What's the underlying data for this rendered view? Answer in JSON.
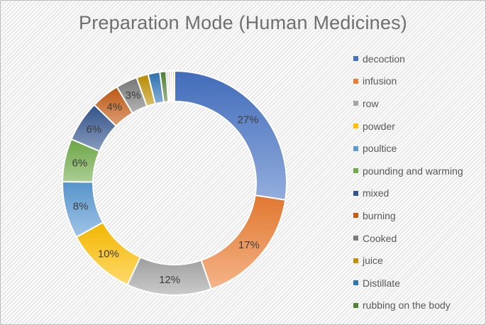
{
  "chart_data": {
    "type": "pie",
    "subtype": "donut",
    "title": "Preparation Mode (Human Medicines)",
    "hole_ratio": 0.73,
    "legend_position": "right",
    "labels_format": "percent",
    "slices": [
      {
        "label": "decoction",
        "value": 27.4,
        "display": "27%",
        "color": "#4472C4",
        "in_legend": true
      },
      {
        "label": "infusion",
        "value": 17.3,
        "display": "17%",
        "color": "#ED7D31",
        "in_legend": true
      },
      {
        "label": "row",
        "value": 12.2,
        "display": "12%",
        "color": "#A5A5A5",
        "in_legend": true
      },
      {
        "label": "powder",
        "value": 10.1,
        "display": "10%",
        "color": "#FFC000",
        "in_legend": true
      },
      {
        "label": "poultice",
        "value": 8.2,
        "display": "8%",
        "color": "#5B9BD5",
        "in_legend": true
      },
      {
        "label": "pounding and warming",
        "value": 6.2,
        "display": "6%",
        "color": "#70AD47",
        "in_legend": true
      },
      {
        "label": "mixed",
        "value": 5.9,
        "display": "6%",
        "color": "#33558F",
        "in_legend": true
      },
      {
        "label": "burning",
        "value": 4.1,
        "display": "4%",
        "color": "#C55A11",
        "in_legend": true
      },
      {
        "label": "Cooked",
        "value": 3.1,
        "display": "3%",
        "color": "#7C7C7C",
        "in_legend": true
      },
      {
        "label": "juice",
        "value": 1.7,
        "display": "",
        "color": "#BF9000",
        "in_legend": true
      },
      {
        "label": "Distillate",
        "value": 1.7,
        "display": "",
        "color": "#2E75B6",
        "in_legend": true
      },
      {
        "label": "rubbing on the body",
        "value": 0.9,
        "display": "",
        "color": "#548235",
        "in_legend": true
      },
      {
        "label": "",
        "value": 0.3,
        "display": "",
        "color": "#9DC3E6",
        "in_legend": false
      },
      {
        "label": "",
        "value": 0.3,
        "display": "",
        "color": "#F4B183",
        "in_legend": false
      },
      {
        "label": "",
        "value": 0.3,
        "display": "",
        "color": "#D6D6D6",
        "in_legend": false
      },
      {
        "label": "",
        "value": 0.3,
        "display": "",
        "color": "#FFD966",
        "in_legend": false
      }
    ]
  },
  "styles": {
    "title_color": "#6f6f6f",
    "slice_label_color": "#3d3d3d",
    "legend_text_color": "#595959",
    "background": "#f0f0f0",
    "slice_border": "#ffffff"
  }
}
